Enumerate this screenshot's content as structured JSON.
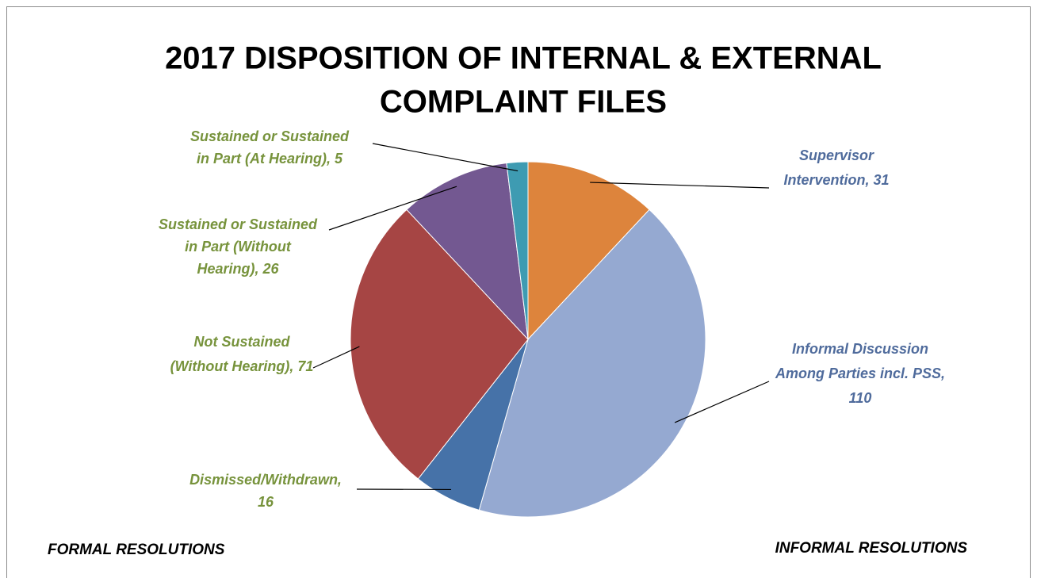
{
  "chart_data": {
    "type": "pie",
    "title": [
      "2017 DISPOSITION OF INTERNAL & EXTERNAL",
      "COMPLAINT FILES"
    ],
    "values": [
      31,
      110,
      16,
      71,
      26,
      5
    ],
    "value_labels": [
      [
        "Supervisor",
        "Intervention, 31"
      ],
      [
        "Informal Discussion",
        "Among Parties incl. PSS,",
        "110"
      ],
      [
        "Dismissed/Withdrawn,",
        "16"
      ],
      [
        "Not Sustained",
        "(Without Hearing), 71"
      ],
      [
        "Sustained or Sustained",
        "in Part (Without",
        "Hearing), 26"
      ],
      [
        "Sustained or Sustained",
        "in Part (At Hearing), 5"
      ]
    ],
    "colors": [
      "#dd843c",
      "#95a9d1",
      "#4672a8",
      "#a64544",
      "#735891",
      "#3e9bb2"
    ],
    "label_colors": [
      "#4f6b9c",
      "#4f6b9c",
      "#77933c",
      "#77933c",
      "#77933c",
      "#77933c"
    ],
    "annotations": [
      "FORMAL RESOLUTIONS",
      "INFORMAL RESOLUTIONS"
    ]
  }
}
